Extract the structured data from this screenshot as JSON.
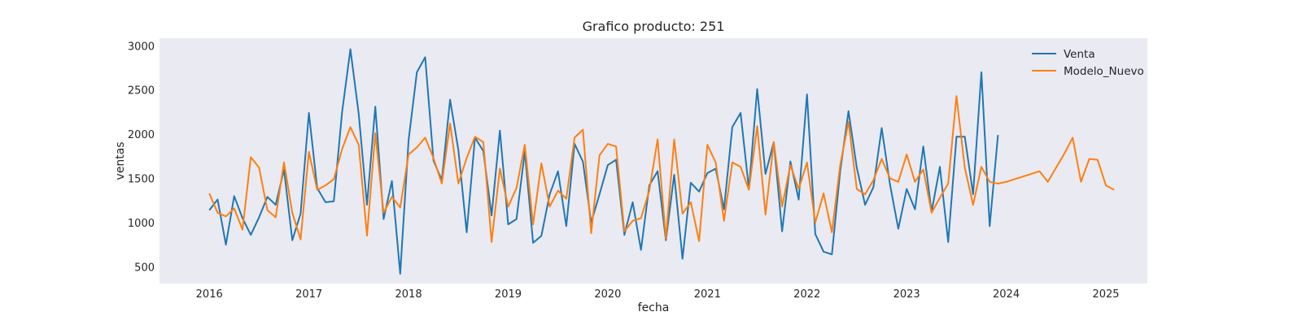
{
  "chart_data": {
    "type": "line",
    "title": "Grafico producto: 251",
    "xlabel": "fecha",
    "ylabel": "ventas",
    "xlim": [
      "2015-07-01",
      "2025-06-01"
    ],
    "ylim": [
      310,
      3085
    ],
    "xticks": [
      "2016",
      "2017",
      "2018",
      "2019",
      "2020",
      "2021",
      "2022",
      "2023",
      "2024",
      "2025"
    ],
    "yticks": [
      500,
      1000,
      1500,
      2000,
      2500,
      3000
    ],
    "grid": false,
    "legend_position": "top-right",
    "series": [
      {
        "name": "Venta",
        "color": "#1f77b4",
        "start": "2016-01",
        "values": [
          1140,
          1260,
          750,
          1300,
          1050,
          860,
          1060,
          1290,
          1200,
          1600,
          800,
          1100,
          2240,
          1390,
          1230,
          1240,
          2250,
          2960,
          2230,
          1200,
          2310,
          1040,
          1470,
          420,
          1930,
          2700,
          2870,
          1700,
          1480,
          2390,
          1820,
          890,
          1960,
          1810,
          1080,
          2040,
          980,
          1040,
          1800,
          770,
          850,
          1320,
          1580,
          960,
          1890,
          1690,
          1000,
          1320,
          1650,
          1710,
          860,
          1230,
          690,
          1420,
          1580,
          800,
          1540,
          590,
          1450,
          1350,
          1560,
          1610,
          1150,
          2080,
          2240,
          1380,
          2510,
          1550,
          1910,
          900,
          1690,
          1260,
          2450,
          870,
          670,
          640,
          1580,
          2260,
          1620,
          1200,
          1400,
          2070,
          1430,
          930,
          1380,
          1150,
          1860,
          1120,
          1630,
          780,
          1970,
          1970,
          1320,
          2700,
          960,
          1990
        ]
      },
      {
        "name": "Modelo_Nuevo",
        "color": "#ff7f0e",
        "start": "2016-01",
        "values": [
          1330,
          1110,
          1070,
          1160,
          920,
          1740,
          1620,
          1140,
          1060,
          1680,
          1110,
          810,
          1800,
          1370,
          1420,
          1490,
          1830,
          2080,
          1880,
          850,
          2010,
          1110,
          1290,
          1170,
          1770,
          1850,
          1960,
          1730,
          1440,
          2120,
          1440,
          1730,
          1970,
          1910,
          780,
          1610,
          1180,
          1390,
          1880,
          980,
          1670,
          1180,
          1360,
          1270,
          1960,
          2050,
          880,
          1760,
          1890,
          1860,
          900,
          1020,
          1050,
          1360,
          1940,
          820,
          1940,
          1100,
          1230,
          790,
          1880,
          1680,
          1020,
          1680,
          1630,
          1370,
          2090,
          1090,
          1910,
          1180,
          1650,
          1380,
          1680,
          1000,
          1330,
          890,
          1650,
          2140,
          1380,
          1320,
          1480,
          1720,
          1500,
          1460,
          1770,
          1460,
          1600,
          1110,
          1280,
          1440,
          2430,
          1620,
          1200,
          1630,
          1460,
          1440,
          1460,
          1490,
          1520,
          1550,
          1580,
          1460,
          1620,
          1780,
          1960,
          1460,
          1720,
          1710,
          1420,
          1370
        ]
      }
    ]
  }
}
